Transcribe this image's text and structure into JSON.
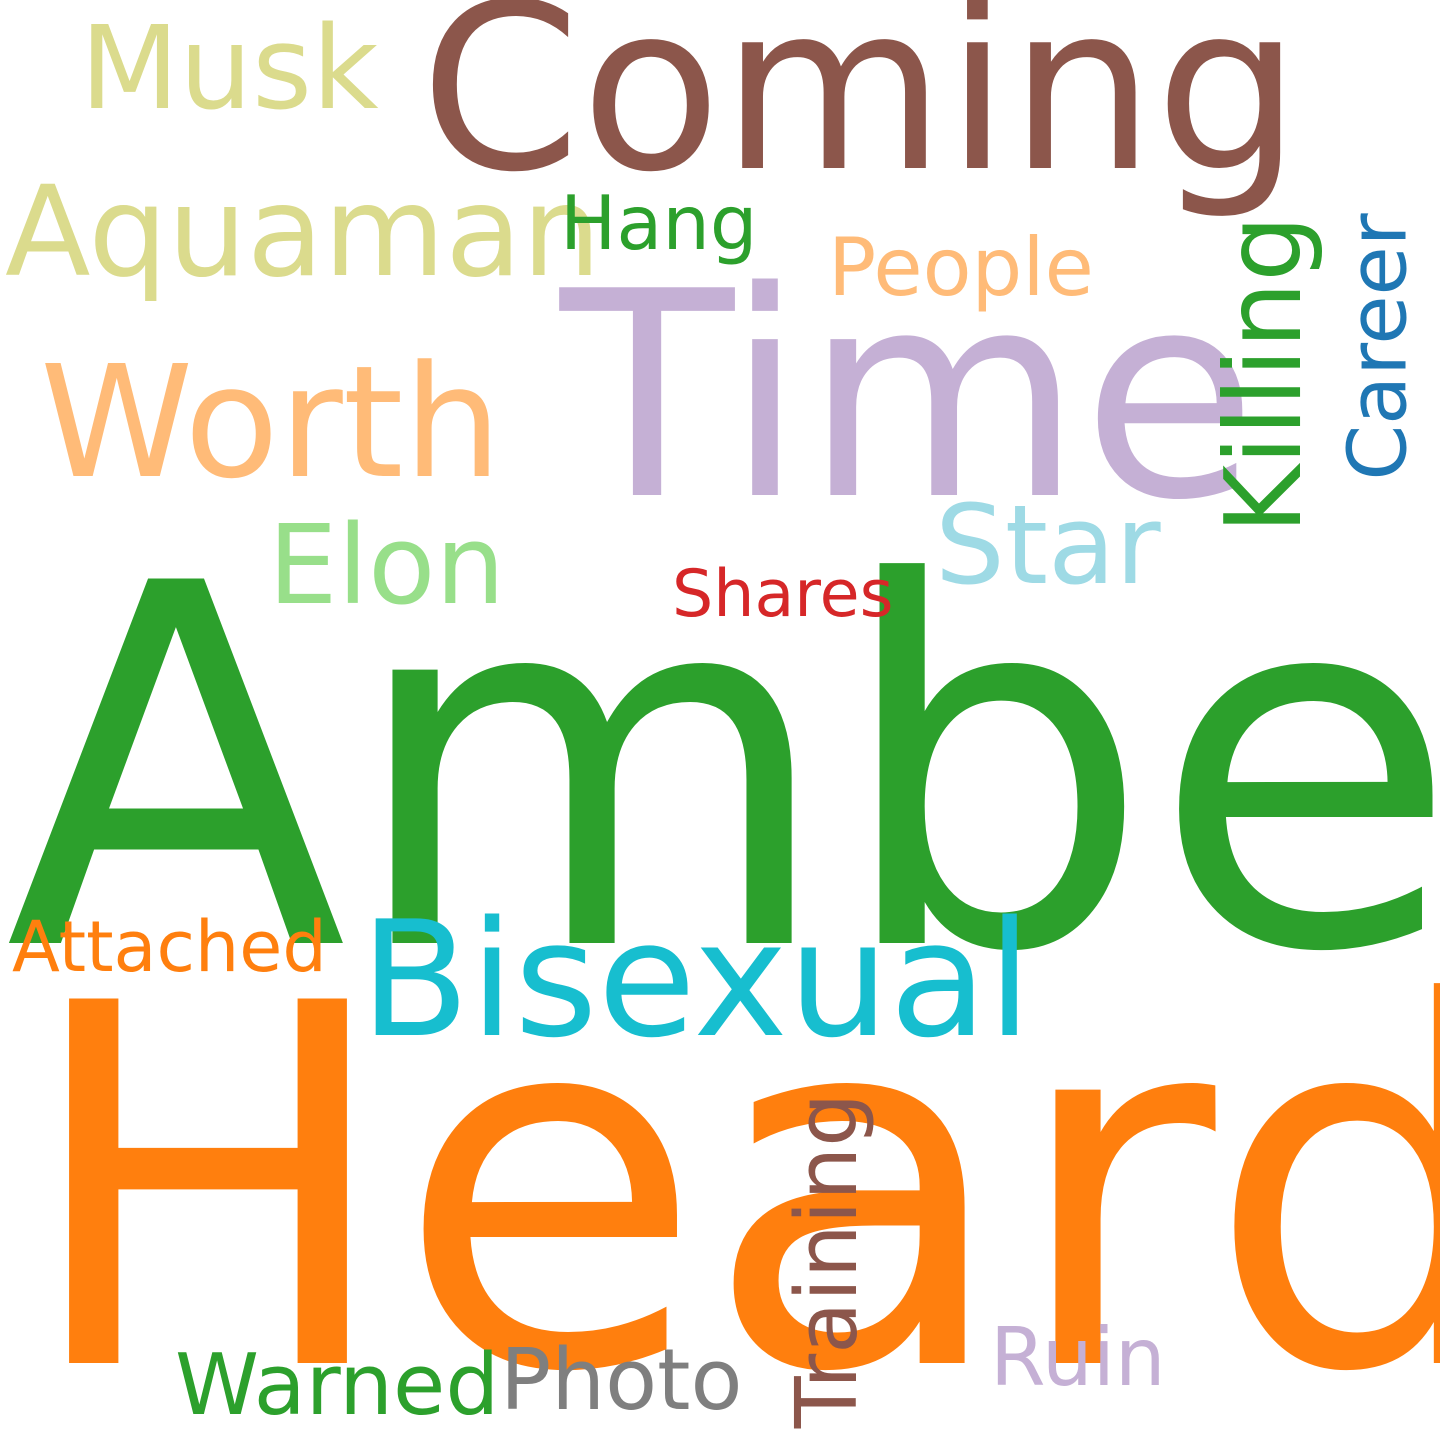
{
  "words": {
    "amber": {
      "text": "Amber",
      "color": "#2ca02c"
    },
    "heard": {
      "text": "Heard",
      "color": "#ff7f0e"
    },
    "time": {
      "text": "Time",
      "color": "#c5b0d5"
    },
    "coming": {
      "text": "Coming",
      "color": "#8c564b"
    },
    "bisexual": {
      "text": "Bisexual",
      "color": "#17becf"
    },
    "worth": {
      "text": "Worth",
      "color": "#ffbb78"
    },
    "aquaman": {
      "text": "Aquaman",
      "color": "#dbdb8d"
    },
    "musk": {
      "text": "Musk",
      "color": "#dbdb8d"
    },
    "elon": {
      "text": "Elon",
      "color": "#98df8a"
    },
    "star": {
      "text": "Star",
      "color": "#9edae5"
    },
    "killing": {
      "text": "Killing",
      "color": "#2ca02c"
    },
    "career": {
      "text": "Career",
      "color": "#1f77b4"
    },
    "training": {
      "text": "Training",
      "color": "#8c564b"
    },
    "people": {
      "text": "People",
      "color": "#ffbb78"
    },
    "hang": {
      "text": "Hang",
      "color": "#2ca02c"
    },
    "shares": {
      "text": "Shares",
      "color": "#d62728"
    },
    "attached": {
      "text": "Attached",
      "color": "#ff7f0e"
    },
    "warned": {
      "text": "Warned",
      "color": "#2ca02c"
    },
    "photo": {
      "text": "Photo",
      "color": "#7f7f7f"
    },
    "ruin": {
      "text": "Ruin",
      "color": "#c5b0d5"
    }
  }
}
